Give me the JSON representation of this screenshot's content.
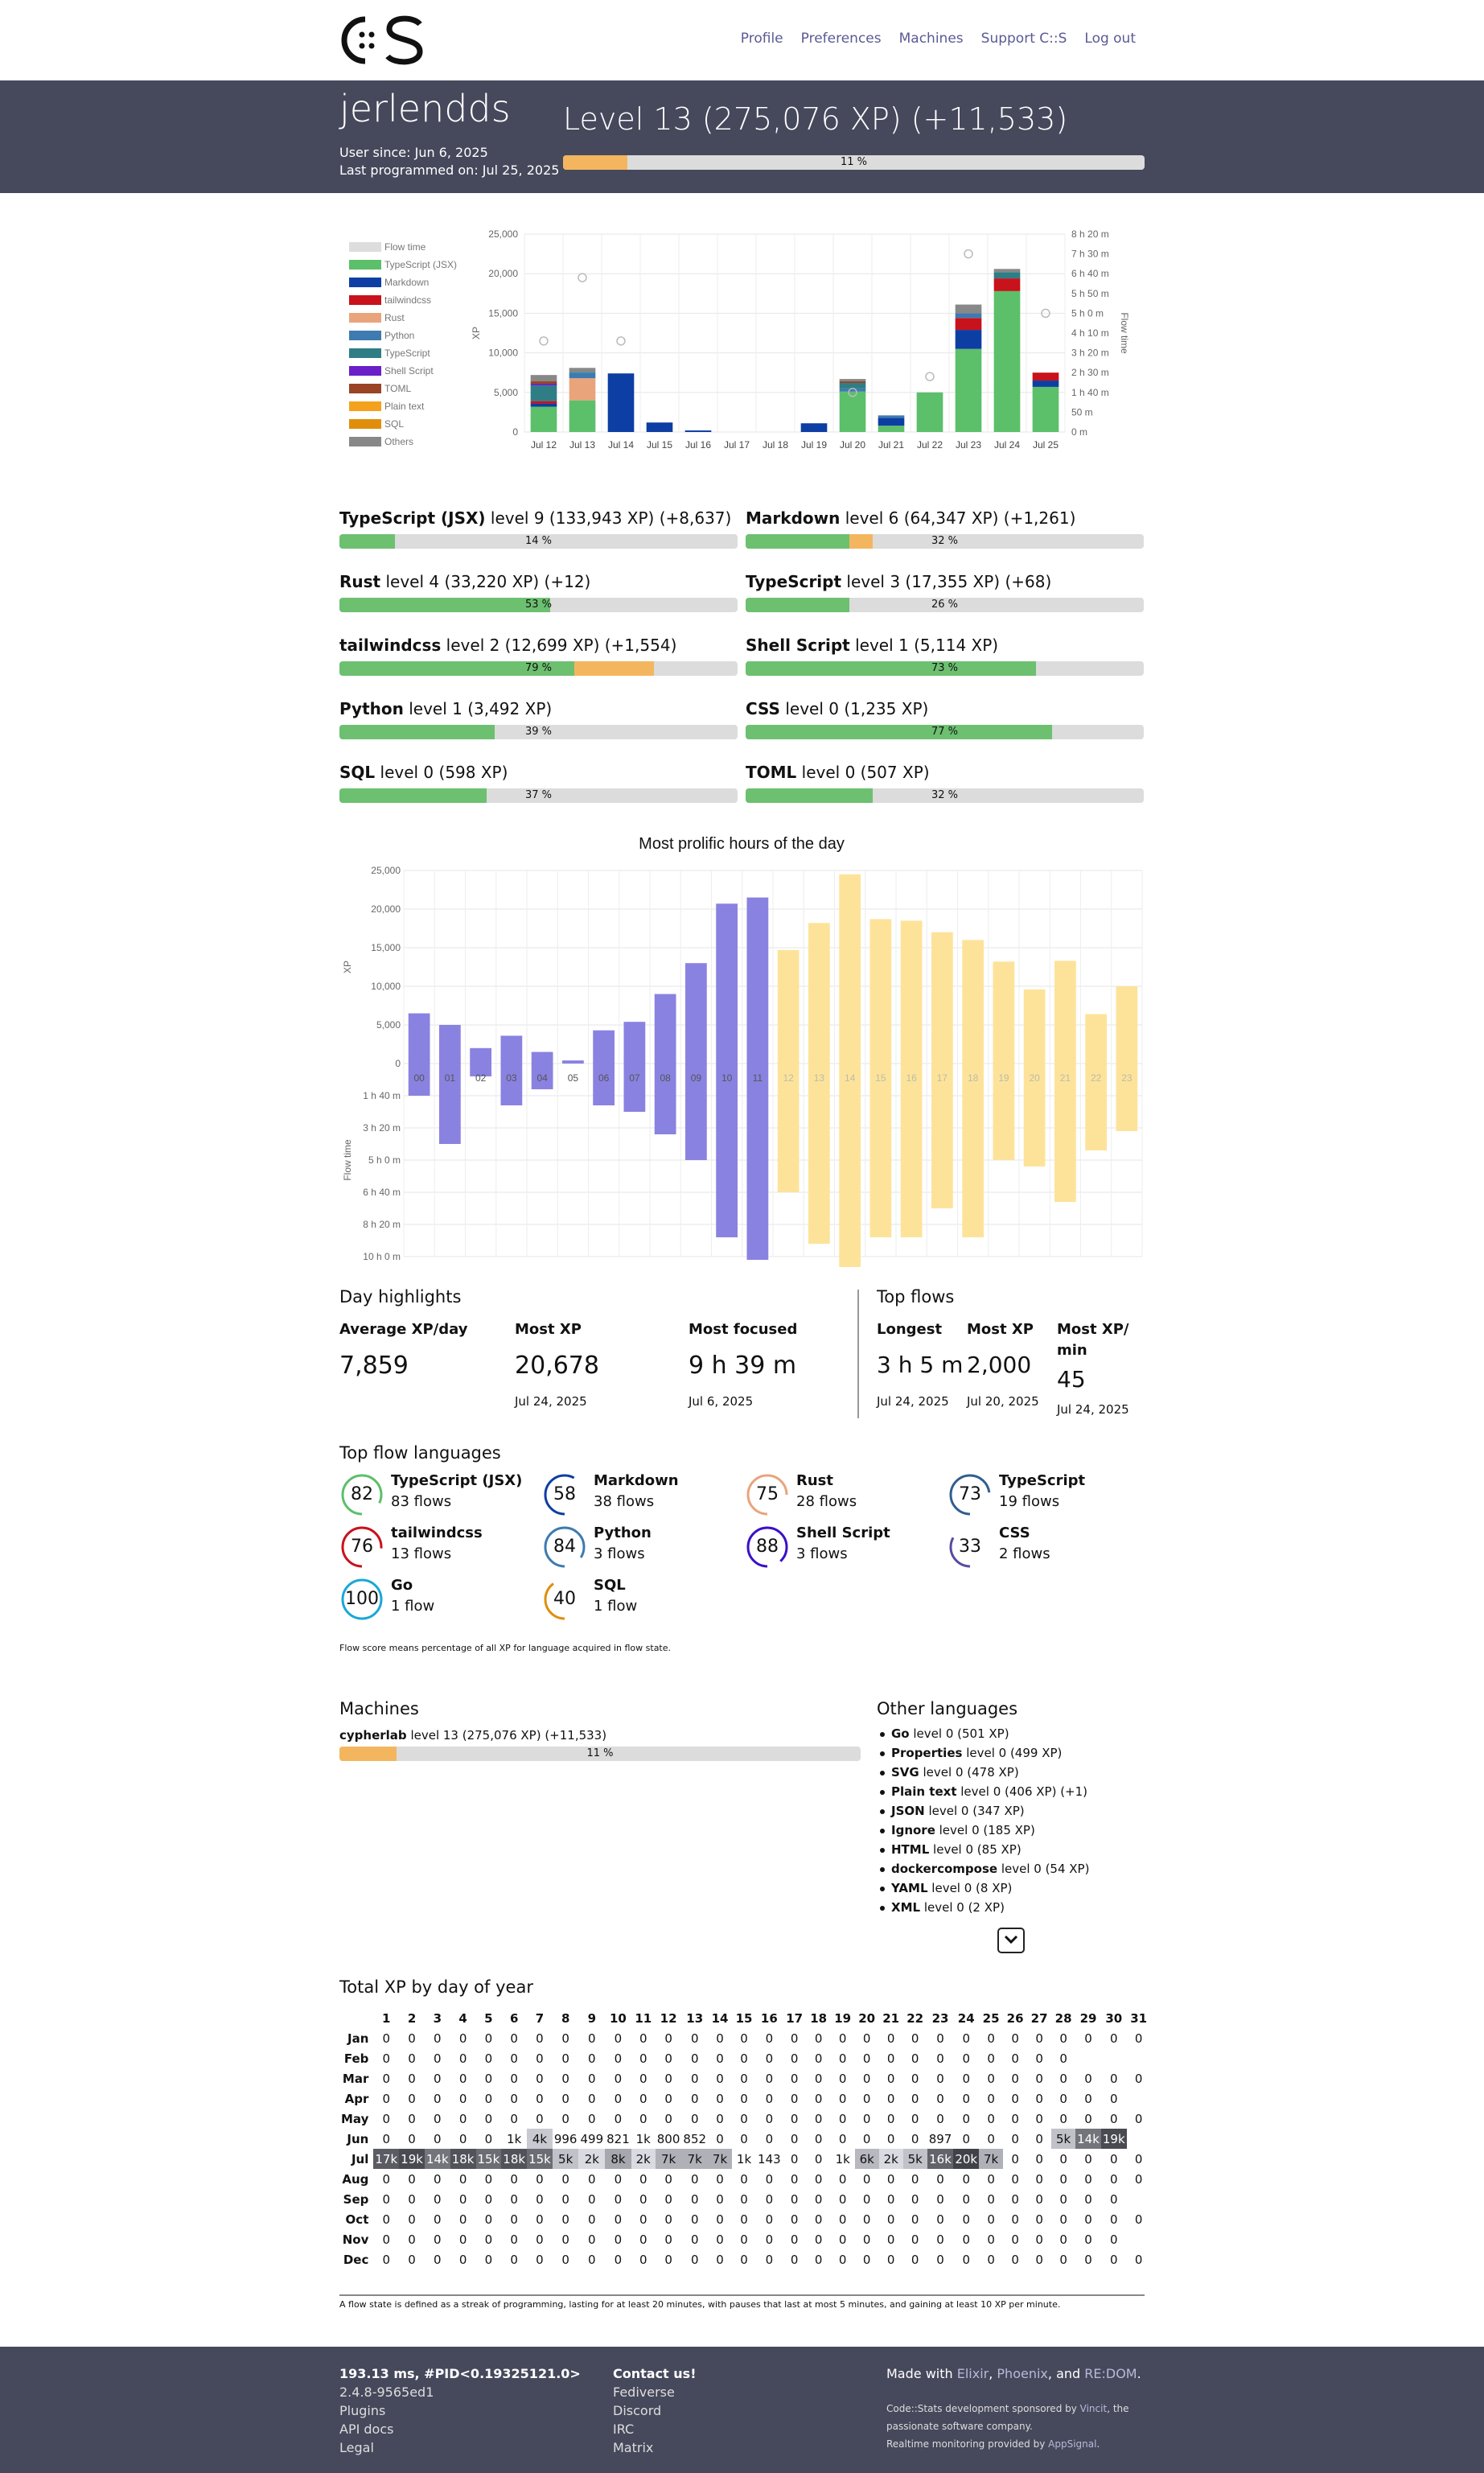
{
  "nav": {
    "links": [
      "Profile",
      "Preferences",
      "Machines",
      "Support C::S",
      "Log out"
    ]
  },
  "user": {
    "name": "jerlendds",
    "since": "User since: Jun 6, 2025",
    "last": "Last programmed on: Jul 25, 2025",
    "level": "Level 13 (275,076 XP) (+11,533)",
    "level_pct": "11 %",
    "level_frac": 0.11,
    "level_new_frac": 0.11
  },
  "chart_data": [
    {
      "type": "bar",
      "title": "",
      "categories": [
        "Jul 12",
        "Jul 13",
        "Jul 14",
        "Jul 15",
        "Jul 16",
        "Jul 17",
        "Jul 18",
        "Jul 19",
        "Jul 20",
        "Jul 21",
        "Jul 22",
        "Jul 23",
        "Jul 24",
        "Jul 25"
      ],
      "ylabel": "XP",
      "y2label": "Flow time",
      "ylim": [
        0,
        25000
      ],
      "y_ticks": [
        "0",
        "5,000",
        "10,000",
        "15,000",
        "20,000",
        "25,000"
      ],
      "y2_ticks": [
        "0 m",
        "50 m",
        "1 h 40 m",
        "2 h 30 m",
        "3 h 20 m",
        "4 h 10 m",
        "5 h 0 m",
        "5 h 50 m",
        "6 h 40 m",
        "7 h 30 m",
        "8 h 20 m"
      ],
      "legend": [
        "Flow time",
        "TypeScript (JSX)",
        "Markdown",
        "tailwindcss",
        "Rust",
        "Python",
        "TypeScript",
        "Shell Script",
        "TOML",
        "Plain text",
        "SQL",
        "Others"
      ],
      "legend_colors": [
        "#dddddd",
        "#5cbf6a",
        "#0d3ea3",
        "#c8121c",
        "#e9a47c",
        "#3d7bb0",
        "#2f7d85",
        "#6a1fc8",
        "#9a4424",
        "#f4a21e",
        "#e08e0b",
        "#888888"
      ],
      "series": [
        {
          "name": "TypeScript (JSX)",
          "values": [
            3200,
            4000,
            0,
            0,
            0,
            0,
            0,
            0,
            5100,
            800,
            5000,
            10500,
            17800,
            5700
          ]
        },
        {
          "name": "Markdown",
          "values": [
            400,
            0,
            7400,
            1200,
            200,
            0,
            0,
            1100,
            0,
            1000,
            0,
            2400,
            0,
            800
          ]
        },
        {
          "name": "tailwindcss",
          "values": [
            300,
            0,
            0,
            0,
            0,
            0,
            0,
            0,
            0,
            0,
            0,
            1500,
            1600,
            1000
          ]
        },
        {
          "name": "Rust",
          "values": [
            0,
            2800,
            0,
            0,
            0,
            0,
            0,
            0,
            0,
            0,
            0,
            0,
            0,
            0
          ]
        },
        {
          "name": "Python",
          "values": [
            0,
            700,
            0,
            0,
            0,
            0,
            0,
            0,
            400,
            300,
            0,
            600,
            0,
            0
          ]
        },
        {
          "name": "TypeScript",
          "values": [
            2000,
            100,
            0,
            0,
            0,
            0,
            0,
            0,
            700,
            0,
            0,
            0,
            800,
            0
          ]
        },
        {
          "name": "Shell Script",
          "values": [
            200,
            0,
            0,
            0,
            0,
            0,
            0,
            0,
            0,
            0,
            0,
            0,
            0,
            0
          ]
        },
        {
          "name": "TOML",
          "values": [
            300,
            0,
            0,
            0,
            0,
            0,
            0,
            0,
            200,
            0,
            0,
            0,
            0,
            0
          ]
        },
        {
          "name": "Others",
          "values": [
            800,
            500,
            0,
            0,
            0,
            0,
            0,
            0,
            300,
            0,
            0,
            1100,
            400,
            0
          ]
        }
      ],
      "flow_time_minutes": [
        230,
        390,
        230,
        0,
        0,
        0,
        0,
        0,
        100,
        0,
        140,
        450,
        720,
        300
      ]
    },
    {
      "type": "bar",
      "title": "Most prolific hours of the day",
      "categories": [
        "00",
        "01",
        "02",
        "03",
        "04",
        "05",
        "06",
        "07",
        "08",
        "09",
        "10",
        "11",
        "12",
        "13",
        "14",
        "15",
        "16",
        "17",
        "18",
        "19",
        "20",
        "21",
        "22",
        "23"
      ],
      "ylabel": "XP",
      "y2label": "Flow time",
      "ylim": [
        0,
        25000
      ],
      "y_ticks": [
        "0",
        "5,000",
        "10,000",
        "15,000",
        "20,000",
        "25,000"
      ],
      "y2_ticks": [
        "1 h 40 m",
        "3 h 20 m",
        "5 h 0 m",
        "6 h 40 m",
        "8 h 20 m",
        "10 h 0 m"
      ],
      "series": [
        {
          "name": "XP",
          "values": [
            6500,
            5000,
            2000,
            3600,
            1500,
            400,
            4300,
            5400,
            9000,
            13000,
            20700,
            21500,
            14700,
            18200,
            24500,
            18700,
            18500,
            17000,
            16000,
            13200,
            9600,
            13300,
            6400,
            10000
          ]
        },
        {
          "name": "Flow time",
          "values": [
            100,
            250,
            40,
            130,
            80,
            0,
            130,
            150,
            220,
            300,
            540,
            610,
            400,
            560,
            720,
            540,
            540,
            450,
            540,
            300,
            320,
            430,
            270,
            210
          ]
        }
      ],
      "y2_minutes_max": 600
    }
  ],
  "langs": [
    {
      "name": "TypeScript (JSX)",
      "rest": " level 9 (133,943 XP) (+8,637)",
      "pct": "14 %",
      "frac": 0.14,
      "new": 0.0
    },
    {
      "name": "Markdown",
      "rest": " level 6 (64,347 XP) (+1,261)",
      "pct": "32 %",
      "frac": 0.26,
      "new": 0.06
    },
    {
      "name": "Rust",
      "rest": " level 4 (33,220 XP) (+12)",
      "pct": "53 %",
      "frac": 0.53,
      "new": 0.0
    },
    {
      "name": "TypeScript",
      "rest": " level 3 (17,355 XP) (+68)",
      "pct": "26 %",
      "frac": 0.26,
      "new": 0.0
    },
    {
      "name": "tailwindcss",
      "rest": " level 2 (12,699 XP) (+1,554)",
      "pct": "79 %",
      "frac": 0.59,
      "new": 0.2
    },
    {
      "name": "Shell Script",
      "rest": " level 1 (5,114 XP)",
      "pct": "73 %",
      "frac": 0.73,
      "new": 0.0
    },
    {
      "name": "Python",
      "rest": " level 1 (3,492 XP)",
      "pct": "39 %",
      "frac": 0.39,
      "new": 0.0
    },
    {
      "name": "CSS",
      "rest": " level 0 (1,235 XP)",
      "pct": "77 %",
      "frac": 0.77,
      "new": 0.0
    },
    {
      "name": "SQL",
      "rest": " level 0 (598 XP)",
      "pct": "37 %",
      "frac": 0.37,
      "new": 0.0
    },
    {
      "name": "TOML",
      "rest": " level 0 (507 XP)",
      "pct": "32 %",
      "frac": 0.32,
      "new": 0.0
    }
  ],
  "day": {
    "title": "Day highlights",
    "avg_label": "Average XP/day",
    "avg": "7,859",
    "mostxp_label": "Most XP",
    "mostxp": "20,678",
    "mostxp_date": "Jul 24, 2025",
    "focus_label": "Most focused",
    "focus": "9 h 39 m",
    "focus_date": "Jul 6, 2025"
  },
  "flows": {
    "title": "Top flows",
    "longest_label": "Longest",
    "longest": "3 h 5 m",
    "longest_date": "Jul 24, 2025",
    "mostxp_label": "Most XP",
    "mostxp": "2,000",
    "mostxp_date": "Jul 20, 2025",
    "permin_label1": "Most XP/",
    "permin_label2": "min",
    "permin": "45",
    "permin_date": "Jul 24, 2025"
  },
  "toplangs": {
    "title": "Top flow languages",
    "note": "Flow score means percentage of all XP for language acquired in flow state.",
    "items": [
      {
        "name": "TypeScript (JSX)",
        "count": "83 flows",
        "score": "82",
        "color": "#5cbf6a"
      },
      {
        "name": "Markdown",
        "count": "38 flows",
        "score": "58",
        "color": "#0d3ea3"
      },
      {
        "name": "Rust",
        "count": "28 flows",
        "score": "75",
        "color": "#e9a47c"
      },
      {
        "name": "TypeScript",
        "count": "19 flows",
        "score": "73",
        "color": "#2f5f8f"
      },
      {
        "name": "tailwindcss",
        "count": "13 flows",
        "score": "76",
        "color": "#c8121c"
      },
      {
        "name": "Python",
        "count": "3 flows",
        "score": "84",
        "color": "#3d7bb0"
      },
      {
        "name": "Shell Script",
        "count": "3 flows",
        "score": "88",
        "color": "#3a10c8"
      },
      {
        "name": "CSS",
        "count": "2 flows",
        "score": "33",
        "color": "#5a4aa0"
      },
      {
        "name": "Go",
        "count": "1 flow",
        "score": "100",
        "color": "#1aa7d6"
      },
      {
        "name": "SQL",
        "count": "1 flow",
        "score": "40",
        "color": "#e08e0b"
      }
    ]
  },
  "machines": {
    "title": "Machines",
    "name": "cypherlab",
    "rest": " level 13 (275,076 XP) (+11,533)",
    "pct": "11 %",
    "frac": 0.11
  },
  "other": {
    "title": "Other languages",
    "items": [
      {
        "name": "Go",
        "rest": " level 0 (501 XP)"
      },
      {
        "name": "Properties",
        "rest": " level 0 (499 XP)"
      },
      {
        "name": "SVG",
        "rest": " level 0 (478 XP)"
      },
      {
        "name": "Plain text",
        "rest": " level 0 (406 XP) (+1)"
      },
      {
        "name": "JSON",
        "rest": " level 0 (347 XP)"
      },
      {
        "name": "Ignore",
        "rest": " level 0 (185 XP)"
      },
      {
        "name": "HTML",
        "rest": " level 0 (85 XP)"
      },
      {
        "name": "dockercompose",
        "rest": " level 0 (54 XP)"
      },
      {
        "name": "YAML",
        "rest": " level 0 (8 XP)"
      },
      {
        "name": "XML",
        "rest": " level 0 (2 XP)"
      }
    ]
  },
  "year": {
    "title": "Total XP by day of year",
    "rows": [
      {
        "m": "Jan",
        "d": [
          "0",
          "0",
          "0",
          "0",
          "0",
          "0",
          "0",
          "0",
          "0",
          "0",
          "0",
          "0",
          "0",
          "0",
          "0",
          "0",
          "0",
          "0",
          "0",
          "0",
          "0",
          "0",
          "0",
          "0",
          "0",
          "0",
          "0",
          "0",
          "0",
          "0",
          "0"
        ]
      },
      {
        "m": "Feb",
        "d": [
          "0",
          "0",
          "0",
          "0",
          "0",
          "0",
          "0",
          "0",
          "0",
          "0",
          "0",
          "0",
          "0",
          "0",
          "0",
          "0",
          "0",
          "0",
          "0",
          "0",
          "0",
          "0",
          "0",
          "0",
          "0",
          "0",
          "0",
          "0"
        ]
      },
      {
        "m": "Mar",
        "d": [
          "0",
          "0",
          "0",
          "0",
          "0",
          "0",
          "0",
          "0",
          "0",
          "0",
          "0",
          "0",
          "0",
          "0",
          "0",
          "0",
          "0",
          "0",
          "0",
          "0",
          "0",
          "0",
          "0",
          "0",
          "0",
          "0",
          "0",
          "0",
          "0",
          "0",
          "0"
        ]
      },
      {
        "m": "Apr",
        "d": [
          "0",
          "0",
          "0",
          "0",
          "0",
          "0",
          "0",
          "0",
          "0",
          "0",
          "0",
          "0",
          "0",
          "0",
          "0",
          "0",
          "0",
          "0",
          "0",
          "0",
          "0",
          "0",
          "0",
          "0",
          "0",
          "0",
          "0",
          "0",
          "0",
          "0"
        ]
      },
      {
        "m": "May",
        "d": [
          "0",
          "0",
          "0",
          "0",
          "0",
          "0",
          "0",
          "0",
          "0",
          "0",
          "0",
          "0",
          "0",
          "0",
          "0",
          "0",
          "0",
          "0",
          "0",
          "0",
          "0",
          "0",
          "0",
          "0",
          "0",
          "0",
          "0",
          "0",
          "0",
          "0",
          "0"
        ]
      },
      {
        "m": "Jun",
        "d": [
          "0",
          "0",
          "0",
          "0",
          "0",
          "1k",
          "4k",
          "996",
          "499",
          "821",
          "1k",
          "800",
          "852",
          "0",
          "0",
          "0",
          "0",
          "0",
          "0",
          "0",
          "0",
          "0",
          "897",
          "0",
          "0",
          "0",
          "0",
          "5k",
          "14k",
          "19k"
        ]
      },
      {
        "m": "Jul",
        "d": [
          "17k",
          "19k",
          "14k",
          "18k",
          "15k",
          "18k",
          "15k",
          "5k",
          "2k",
          "8k",
          "2k",
          "7k",
          "7k",
          "7k",
          "1k",
          "143",
          "0",
          "0",
          "1k",
          "6k",
          "2k",
          "5k",
          "16k",
          "20k",
          "7k",
          "0",
          "0",
          "0",
          "0",
          "0",
          "0"
        ]
      },
      {
        "m": "Aug",
        "d": [
          "0",
          "0",
          "0",
          "0",
          "0",
          "0",
          "0",
          "0",
          "0",
          "0",
          "0",
          "0",
          "0",
          "0",
          "0",
          "0",
          "0",
          "0",
          "0",
          "0",
          "0",
          "0",
          "0",
          "0",
          "0",
          "0",
          "0",
          "0",
          "0",
          "0",
          "0"
        ]
      },
      {
        "m": "Sep",
        "d": [
          "0",
          "0",
          "0",
          "0",
          "0",
          "0",
          "0",
          "0",
          "0",
          "0",
          "0",
          "0",
          "0",
          "0",
          "0",
          "0",
          "0",
          "0",
          "0",
          "0",
          "0",
          "0",
          "0",
          "0",
          "0",
          "0",
          "0",
          "0",
          "0",
          "0"
        ]
      },
      {
        "m": "Oct",
        "d": [
          "0",
          "0",
          "0",
          "0",
          "0",
          "0",
          "0",
          "0",
          "0",
          "0",
          "0",
          "0",
          "0",
          "0",
          "0",
          "0",
          "0",
          "0",
          "0",
          "0",
          "0",
          "0",
          "0",
          "0",
          "0",
          "0",
          "0",
          "0",
          "0",
          "0",
          "0"
        ]
      },
      {
        "m": "Nov",
        "d": [
          "0",
          "0",
          "0",
          "0",
          "0",
          "0",
          "0",
          "0",
          "0",
          "0",
          "0",
          "0",
          "0",
          "0",
          "0",
          "0",
          "0",
          "0",
          "0",
          "0",
          "0",
          "0",
          "0",
          "0",
          "0",
          "0",
          "0",
          "0",
          "0",
          "0"
        ]
      },
      {
        "m": "Dec",
        "d": [
          "0",
          "0",
          "0",
          "0",
          "0",
          "0",
          "0",
          "0",
          "0",
          "0",
          "0",
          "0",
          "0",
          "0",
          "0",
          "0",
          "0",
          "0",
          "0",
          "0",
          "0",
          "0",
          "0",
          "0",
          "0",
          "0",
          "0",
          "0",
          "0",
          "0",
          "0"
        ]
      }
    ]
  },
  "flownote": "A flow state is defined as a streak of programming, lasting for at least 20 minutes, with pauses that last at most 5 minutes, and gaining at least 10 XP per minute.",
  "footer": {
    "timing": "193.13 ms, #PID<0.19325121.0>",
    "version": "2.4.8-9565ed1",
    "links1": [
      "Plugins",
      "API docs",
      "Legal"
    ],
    "contact": "Contact us!",
    "links2": [
      "Fediverse",
      "Discord",
      "IRC",
      "Matrix"
    ],
    "made_pre": "Made with ",
    "elixir": "Elixir",
    "comma": ", ",
    "phoenix": "Phoenix",
    "and": ", and ",
    "redom": "RE:DOM",
    "dot": ".",
    "sponsor_pre": "Code::Stats development sponsored by ",
    "vincit": "Vincit",
    "sponsor_post": ", the",
    "sponsor2": "passionate software company.",
    "monitor_pre": "Realtime monitoring provided by ",
    "appsignal": "AppSignal",
    "monitor_post": "."
  }
}
